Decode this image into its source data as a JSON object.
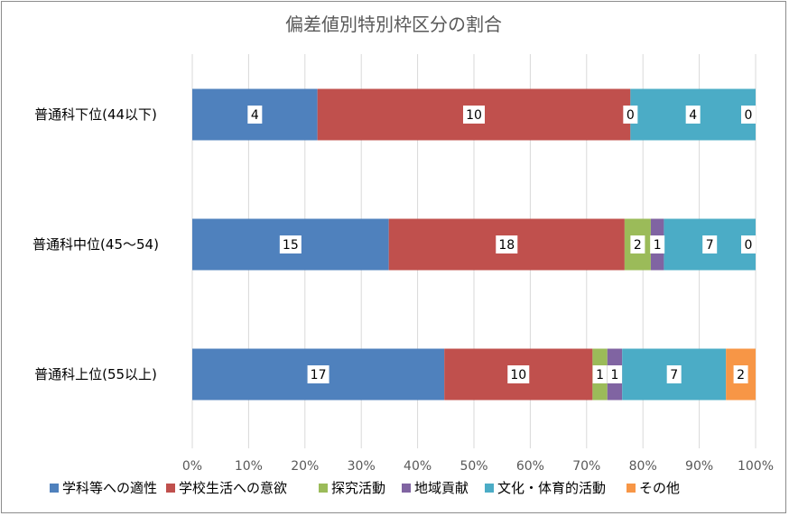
{
  "chart_data": {
    "type": "bar",
    "orientation": "horizontal",
    "stacked": "percent",
    "title": "偏差値別特別枠区分の割合",
    "categories": [
      "普通科下位(44以下)",
      "普通科中位(45～54)",
      "普通科上位(55以上)"
    ],
    "series": [
      {
        "name": "学科等への適性",
        "color": "#4F81BD",
        "values": [
          4,
          15,
          17
        ]
      },
      {
        "name": "学校生活への意欲",
        "color": "#C0504D",
        "values": [
          10,
          18,
          10
        ]
      },
      {
        "name": "探究活動",
        "color": "#9BBB59",
        "values": [
          0,
          2,
          1
        ]
      },
      {
        "name": "地域貢献",
        "color": "#8064A2",
        "values": [
          0,
          1,
          1
        ]
      },
      {
        "name": "文化・体育的活動",
        "color": "#4BACC6",
        "values": [
          4,
          7,
          7
        ]
      },
      {
        "name": "その他",
        "color": "#F79646",
        "values": [
          0,
          0,
          2
        ]
      }
    ],
    "xlim": [
      0,
      100
    ],
    "xticks": [
      "0%",
      "10%",
      "20%",
      "30%",
      "40%",
      "50%",
      "60%",
      "70%",
      "80%",
      "90%",
      "100%"
    ],
    "grid": true,
    "legend": "bottom"
  }
}
